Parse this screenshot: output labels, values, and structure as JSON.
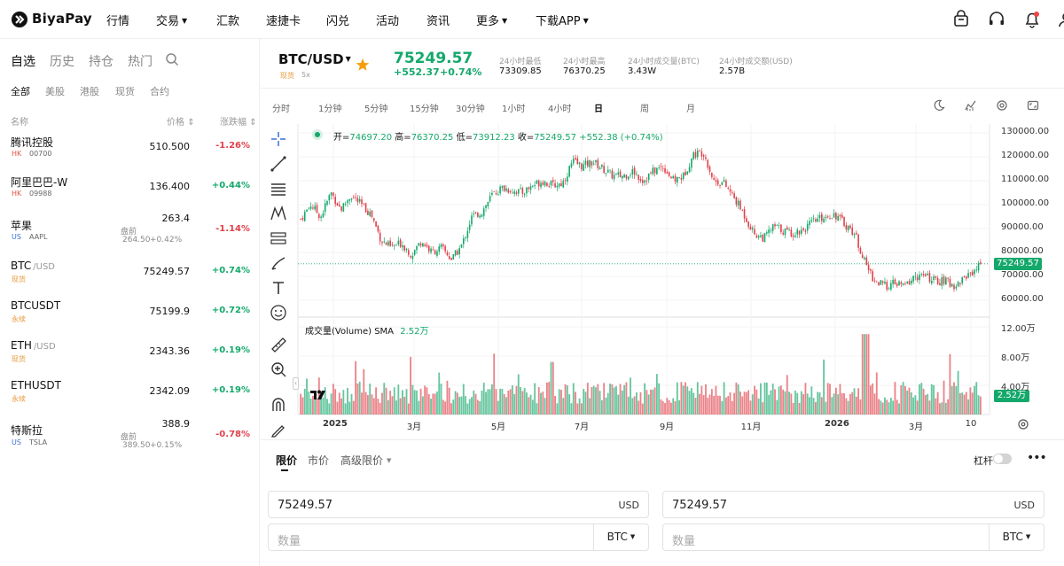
{
  "nav": {
    "logo": "BiyaPay",
    "items": [
      "行情",
      "交易",
      "汇款",
      "速捷卡",
      "闪兑",
      "活动",
      "资讯",
      "更多",
      "下载APP"
    ]
  },
  "sidebar": {
    "tabs": [
      "自选",
      "历史",
      "持仓",
      "热门"
    ],
    "filters": [
      "全部",
      "美股",
      "港股",
      "现货",
      "合约"
    ],
    "headers": {
      "name": "名称",
      "price": "价格",
      "change": "涨跌幅"
    },
    "rows": [
      {
        "name": "腾讯控股",
        "suffix": "",
        "tag": "HK",
        "code": "00700",
        "price": "510.500",
        "change": "-1.26%",
        "pre_label": "",
        "pre_price": "",
        "pre_change": ""
      },
      {
        "name": "阿里巴巴-W",
        "suffix": "",
        "tag": "HK",
        "code": "09988",
        "price": "136.400",
        "change": "+0.44%",
        "pre_label": "",
        "pre_price": "",
        "pre_change": ""
      },
      {
        "name": "苹果",
        "suffix": "",
        "tag": "US",
        "code": "AAPL",
        "price": "263.4",
        "change": "-1.14%",
        "pre_label": "盘前",
        "pre_price": "264.50",
        "pre_change": "+0.42%"
      },
      {
        "name": "BTC",
        "suffix": "/USD",
        "tag": "现货",
        "code": "",
        "price": "75249.57",
        "change": "+0.74%",
        "pre_label": "",
        "pre_price": "",
        "pre_change": ""
      },
      {
        "name": "BTCUSDT",
        "suffix": "",
        "tag": "永续",
        "code": "",
        "price": "75199.9",
        "change": "+0.72%",
        "pre_label": "",
        "pre_price": "",
        "pre_change": ""
      },
      {
        "name": "ETH",
        "suffix": "/USD",
        "tag": "现货",
        "code": "",
        "price": "2343.36",
        "change": "+0.19%",
        "pre_label": "",
        "pre_price": "",
        "pre_change": ""
      },
      {
        "name": "ETHUSDT",
        "suffix": "",
        "tag": "永续",
        "code": "",
        "price": "2342.09",
        "change": "+0.19%",
        "pre_label": "",
        "pre_price": "",
        "pre_change": ""
      },
      {
        "name": "特斯拉",
        "suffix": "",
        "tag": "US",
        "code": "TSLA",
        "price": "388.9",
        "change": "-0.78%",
        "pre_label": "盘前",
        "pre_price": "389.50",
        "pre_change": "+0.15%"
      }
    ]
  },
  "ticker": {
    "pair": "BTC/USD",
    "type_tag": "现货",
    "leverage": "5x",
    "price": "75249.57",
    "change_abs": "+552.37",
    "change_pct": "+0.74%",
    "stats": [
      {
        "label": "24小时最低",
        "value": "73309.85"
      },
      {
        "label": "24小时最高",
        "value": "76370.25"
      },
      {
        "label": "24小时成交量(BTC)",
        "value": "3.43W"
      },
      {
        "label": "24小时成交额(USD)",
        "value": "2.57B"
      }
    ]
  },
  "intervals": [
    "分时",
    "1分钟",
    "5分钟",
    "15分钟",
    "30分钟",
    "1小时",
    "4小时",
    "日",
    "周",
    "月"
  ],
  "active_interval": "日",
  "chart_data": {
    "type": "candlestick",
    "ohlc": {
      "open_label": "开=",
      "open": "74697.20",
      "high_label": "高=",
      "high": "76370.25",
      "low_label": "低=",
      "low": "73912.23",
      "close_label": "收=",
      "close": "75249.57",
      "change": "+552.38 (+0.74%)"
    },
    "price_ticks": [
      "130000.00",
      "120000.00",
      "110000.00",
      "100000.00",
      "90000.00",
      "80000.00",
      "70000.00",
      "60000.00"
    ],
    "price_tick_values": [
      130000,
      120000,
      110000,
      100000,
      90000,
      80000,
      70000,
      60000
    ],
    "ylim": [
      56000,
      134000
    ],
    "last_price_label": "75249.57",
    "last_price": 75249.57,
    "volume_label": "成交量(Volume)",
    "volume_sma_label": "SMA",
    "volume_sma": "2.52万",
    "volume_ticks": [
      "12.00万",
      "8.00万",
      "4.00万"
    ],
    "volume_tick_values": [
      120000,
      80000,
      40000
    ],
    "volume_ylim": [
      0,
      134000
    ],
    "volume_sma_value": 25200,
    "x_labels": [
      "2025",
      "3月",
      "5月",
      "7月",
      "9月",
      "11月",
      "2026",
      "3月",
      "10"
    ],
    "close_series": [
      [
        0,
        94000
      ],
      [
        10,
        100000
      ],
      [
        20,
        95000
      ],
      [
        30,
        105000
      ],
      [
        40,
        98000
      ],
      [
        50,
        104000
      ],
      [
        60,
        100000
      ],
      [
        70,
        96000
      ],
      [
        80,
        85000
      ],
      [
        90,
        82000
      ],
      [
        100,
        84000
      ],
      [
        110,
        79000
      ],
      [
        120,
        85000
      ],
      [
        130,
        80000
      ],
      [
        140,
        82000
      ],
      [
        150,
        77000
      ],
      [
        160,
        83000
      ],
      [
        170,
        95000
      ],
      [
        180,
        97000
      ],
      [
        190,
        104000
      ],
      [
        200,
        107000
      ],
      [
        210,
        106000
      ],
      [
        220,
        105000
      ],
      [
        230,
        108000
      ],
      [
        240,
        110000
      ],
      [
        250,
        108000
      ],
      [
        260,
        109000
      ],
      [
        270,
        118000
      ],
      [
        280,
        116000
      ],
      [
        290,
        118000
      ],
      [
        300,
        115000
      ],
      [
        310,
        112000
      ],
      [
        320,
        112000
      ],
      [
        330,
        114000
      ],
      [
        340,
        110000
      ],
      [
        350,
        114000
      ],
      [
        360,
        116000
      ],
      [
        370,
        110000
      ],
      [
        380,
        112000
      ],
      [
        390,
        121000
      ],
      [
        400,
        122000
      ],
      [
        410,
        110000
      ],
      [
        420,
        109000
      ],
      [
        430,
        103000
      ],
      [
        440,
        96000
      ],
      [
        450,
        88000
      ],
      [
        460,
        86000
      ],
      [
        470,
        91000
      ],
      [
        480,
        89000
      ],
      [
        490,
        88000
      ],
      [
        500,
        90000
      ],
      [
        510,
        93000
      ],
      [
        520,
        95000
      ],
      [
        530,
        96000
      ],
      [
        540,
        92000
      ],
      [
        550,
        88000
      ],
      [
        560,
        76000
      ],
      [
        570,
        68000
      ],
      [
        580,
        66000
      ],
      [
        590,
        67000
      ],
      [
        600,
        66000
      ],
      [
        610,
        70000
      ],
      [
        620,
        70000
      ],
      [
        630,
        68000
      ],
      [
        640,
        68000
      ],
      [
        650,
        66000
      ],
      [
        660,
        70000
      ],
      [
        670,
        73000
      ],
      [
        675,
        75249
      ]
    ]
  },
  "order": {
    "tabs": [
      "限价",
      "市价",
      "高级限价"
    ],
    "leverage_label": "杠杆",
    "buy_price": "75249.57",
    "sell_price": "75249.57",
    "price_unit": "USD",
    "qty_placeholder": "数量",
    "qty_unit": "BTC"
  },
  "colors": {
    "up": "#14a86b",
    "down": "#e0414a",
    "star": "#f59e0b",
    "accent": "#16a34a"
  }
}
